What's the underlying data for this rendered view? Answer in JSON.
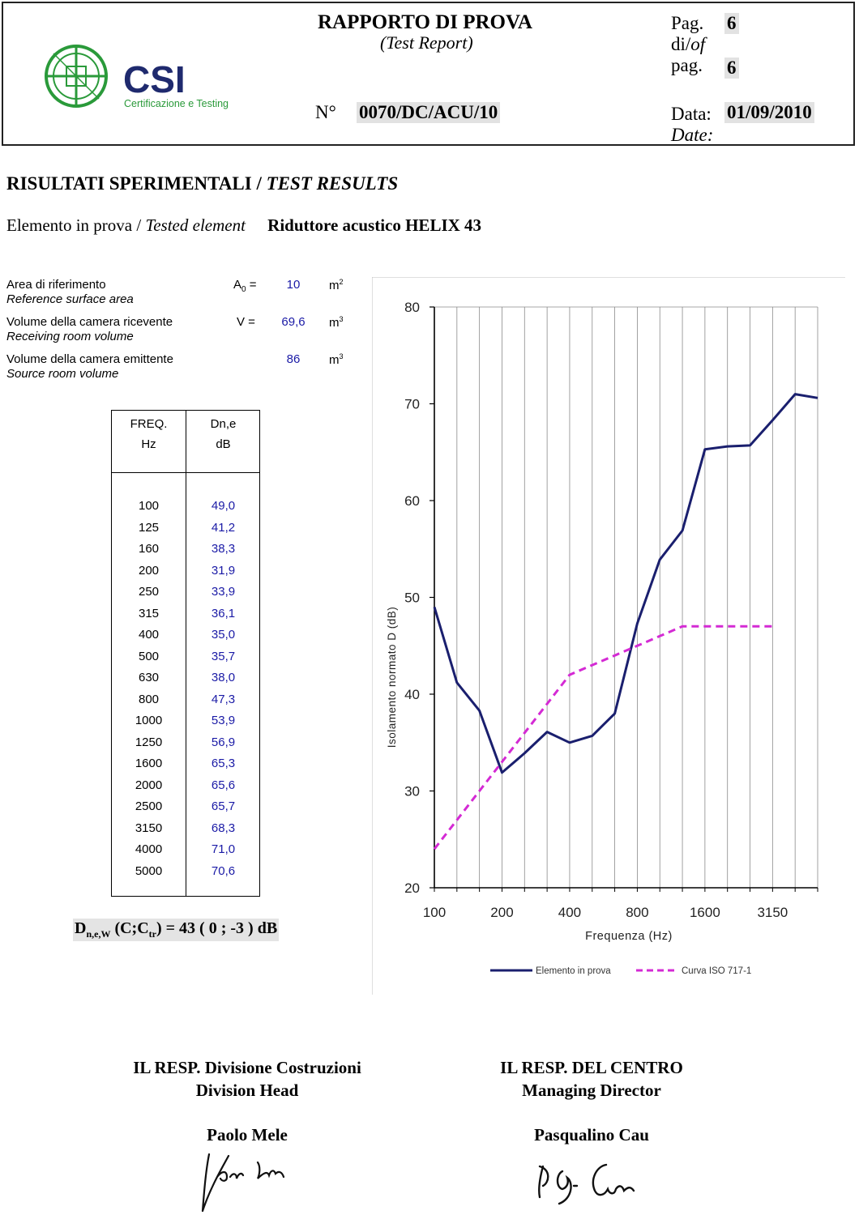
{
  "header": {
    "title": "RAPPORTO DI PROVA",
    "subtitle": "(Test Report)",
    "logo_letters": "CSI",
    "logo_tagline": "Certificazione e Testing",
    "number_label": "N°",
    "number_value": "0070/DC/ACU/10",
    "page_label_1": "Pag.",
    "page_value": "6",
    "of_label_it": "di/",
    "of_label_en": "of",
    "page_label_2": "pag.",
    "page_total": "6",
    "date_label": "Data:",
    "date_label_en": "Date:",
    "date_value": "01/09/2010",
    "accent_color": "#2a9a3a",
    "logo_text_color": "#1f2a6e"
  },
  "section": {
    "title_it": "RISULTATI SPERIMENTALI / ",
    "title_en": "TEST RESULTS",
    "tested_label_it": "Elemento in prova / ",
    "tested_label_en": "Tested element",
    "tested_value": "Riduttore acustico HELIX 43"
  },
  "params": [
    {
      "label_it": "Area di riferimento",
      "label_en": "Reference surface area",
      "symbol": "A",
      "symbol_sub": "0",
      "symbol_suffix": " =",
      "value": "10",
      "unit": "m",
      "unit_sup": "2"
    },
    {
      "label_it": "Volume della camera ricevente",
      "label_en": "Receiving room volume",
      "symbol": "V =",
      "symbol_sub": "",
      "symbol_suffix": "",
      "value": "69,6",
      "unit": "m",
      "unit_sup": "3"
    },
    {
      "label_it": "Volume della camera emittente",
      "label_en": "Source room volume",
      "symbol": "",
      "symbol_sub": "",
      "symbol_suffix": "",
      "value": "86",
      "unit": "m",
      "unit_sup": "3"
    }
  ],
  "table": {
    "col1_h1": "FREQ.",
    "col1_h2": "Hz",
    "col2_h1": "Dn,e",
    "col2_h2": "dB",
    "rows": [
      {
        "f": "100",
        "d": "49,0"
      },
      {
        "f": "125",
        "d": "41,2"
      },
      {
        "f": "160",
        "d": "38,3"
      },
      {
        "f": "200",
        "d": "31,9"
      },
      {
        "f": "250",
        "d": "33,9"
      },
      {
        "f": "315",
        "d": "36,1"
      },
      {
        "f": "400",
        "d": "35,0"
      },
      {
        "f": "500",
        "d": "35,7"
      },
      {
        "f": "630",
        "d": "38,0"
      },
      {
        "f": "800",
        "d": "47,3"
      },
      {
        "f": "1000",
        "d": "53,9"
      },
      {
        "f": "1250",
        "d": "56,9"
      },
      {
        "f": "1600",
        "d": "65,3"
      },
      {
        "f": "2000",
        "d": "65,6"
      },
      {
        "f": "2500",
        "d": "65,7"
      },
      {
        "f": "3150",
        "d": "68,3"
      },
      {
        "f": "4000",
        "d": "71,0"
      },
      {
        "f": "5000",
        "d": "70,6"
      }
    ]
  },
  "rating": {
    "main": "D",
    "sub": "n,e,W",
    "mid": " (C;C",
    "sub2": "tr",
    "tail": ") = 43 ( 0 ; -3 ) dB"
  },
  "chart_data": {
    "type": "line",
    "xlabel": "Frequenza  (Hz)",
    "ylabel": "Isolamento normato D (dB)",
    "ylim": [
      20,
      80
    ],
    "yticks": [
      "20",
      "30",
      "40",
      "50",
      "60",
      "70",
      "80"
    ],
    "xtick_labels": [
      "100",
      "200",
      "400",
      "800",
      "1600",
      "3150"
    ],
    "x_categories": [
      "100",
      "125",
      "160",
      "200",
      "250",
      "315",
      "400",
      "500",
      "630",
      "800",
      "1000",
      "1250",
      "1600",
      "2000",
      "2500",
      "3150",
      "4000",
      "5000"
    ],
    "grid": true,
    "legend": "bottom",
    "series": [
      {
        "name": "Elemento in prova",
        "color": "#1a1f6e",
        "style": "solid",
        "values": [
          49.0,
          41.2,
          38.3,
          31.9,
          33.9,
          36.1,
          35.0,
          35.7,
          38.0,
          47.3,
          53.9,
          56.9,
          65.3,
          65.6,
          65.7,
          68.3,
          71.0,
          70.6
        ]
      },
      {
        "name": "Curva ISO 717-1",
        "color": "#d42ad4",
        "style": "dashed",
        "values": [
          24,
          27,
          30,
          33,
          36,
          39,
          42,
          43,
          44,
          45,
          46,
          47,
          47,
          47,
          47,
          47,
          null,
          null
        ]
      }
    ]
  },
  "signatures": {
    "left_title_it": "IL RESP. Divisione Costruzioni",
    "left_title_en": "Division Head",
    "left_name": "Paolo Mele",
    "right_title_it": "IL RESP. DEL CENTRO",
    "right_title_en": "Managing Director",
    "right_name": "Pasqualino Cau"
  }
}
